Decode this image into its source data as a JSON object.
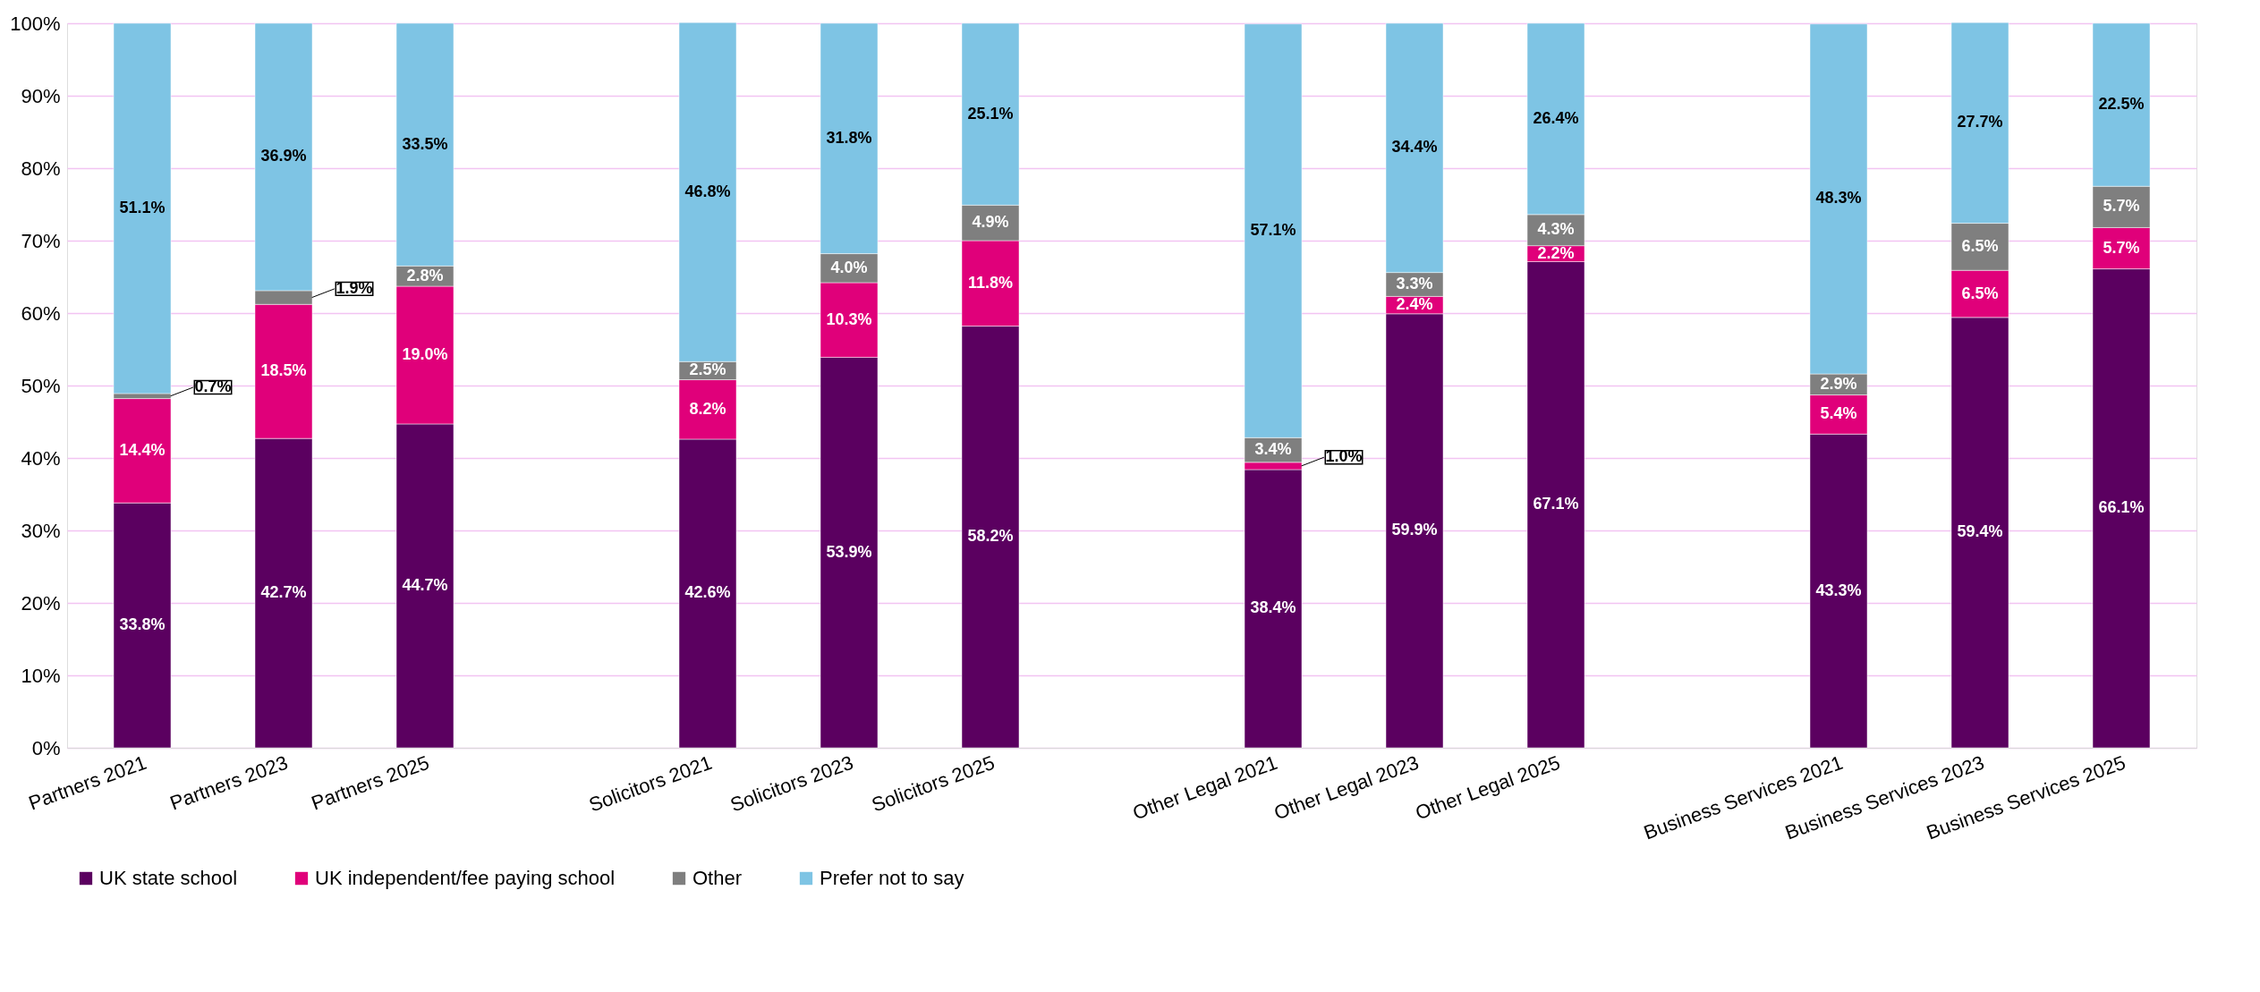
{
  "chart_data": {
    "type": "bar",
    "stacked": true,
    "data_labels": true,
    "legend": "bottom",
    "grid": "y",
    "categories": [
      "Partners 2021",
      "Partners 2023",
      "Partners 2025",
      null,
      "Solicitors 2021",
      "Solicitors 2023",
      "Solicitors 2025",
      null,
      "Other Legal 2021",
      "Other Legal 2023",
      "Other Legal 2025",
      null,
      "Business Services 2021",
      "Business Services 2023",
      "Business Services 2025"
    ],
    "ylim": [
      0,
      100
    ],
    "yticks": [
      {
        "value": 0,
        "label": "0%"
      },
      {
        "value": 10,
        "label": "10%"
      },
      {
        "value": 20,
        "label": "20%"
      },
      {
        "value": 30,
        "label": "30%"
      },
      {
        "value": 40,
        "label": "40%"
      },
      {
        "value": 50,
        "label": "50%"
      },
      {
        "value": 60,
        "label": "60%"
      },
      {
        "value": 70,
        "label": "70%"
      },
      {
        "value": 80,
        "label": "80%"
      },
      {
        "value": 90,
        "label": "90%"
      },
      {
        "value": 100,
        "label": "100%"
      }
    ],
    "series": [
      {
        "name": "UK state school",
        "color": "#5b0060",
        "values": [
          33.8,
          42.7,
          44.7,
          null,
          42.6,
          53.9,
          58.2,
          null,
          38.4,
          59.9,
          67.1,
          null,
          43.3,
          59.4,
          66.1
        ],
        "value_labels": [
          "33.8%",
          "42.7%",
          "44.7%",
          null,
          "42.6%",
          "53.9%",
          "58.2%",
          null,
          "38.4%",
          "59.9%",
          "67.1%",
          null,
          "43.3%",
          "59.4%",
          "66.1%"
        ]
      },
      {
        "name": "UK independent/fee paying school",
        "color": "#e0007a",
        "values": [
          14.4,
          18.5,
          19.0,
          null,
          8.2,
          10.3,
          11.8,
          null,
          1.0,
          2.4,
          2.2,
          null,
          5.4,
          6.5,
          5.7
        ],
        "value_labels": [
          "14.4%",
          "18.5%",
          "19.0%",
          null,
          "8.2%",
          "10.3%",
          "11.8%",
          null,
          "1.0%",
          "2.4%",
          "2.2%",
          null,
          "5.4%",
          "6.5%",
          "5.7%"
        ]
      },
      {
        "name": "Other",
        "color": "#7f7f7f",
        "values": [
          0.7,
          1.9,
          2.8,
          null,
          2.5,
          4.0,
          4.9,
          null,
          3.4,
          3.3,
          4.3,
          null,
          2.9,
          6.5,
          5.7
        ],
        "value_labels": [
          "0.7%",
          "1.9%",
          "2.8%",
          null,
          "2.5%",
          "4.0%",
          "4.9%",
          null,
          "3.4%",
          "3.3%",
          "4.3%",
          null,
          "2.9%",
          "6.5%",
          "5.7%"
        ]
      },
      {
        "name": "Prefer not to say",
        "color": "#7ec4e4",
        "values": [
          51.1,
          36.9,
          33.5,
          null,
          46.8,
          31.8,
          25.1,
          null,
          57.1,
          34.4,
          26.4,
          null,
          48.3,
          27.7,
          22.5
        ],
        "value_labels": [
          "51.1%",
          "36.9%",
          "33.5%",
          null,
          "46.8%",
          "31.8%",
          "25.1%",
          null,
          "57.1%",
          "34.4%",
          "26.4%",
          null,
          "48.3%",
          "27.7%",
          "22.5%"
        ]
      }
    ]
  }
}
